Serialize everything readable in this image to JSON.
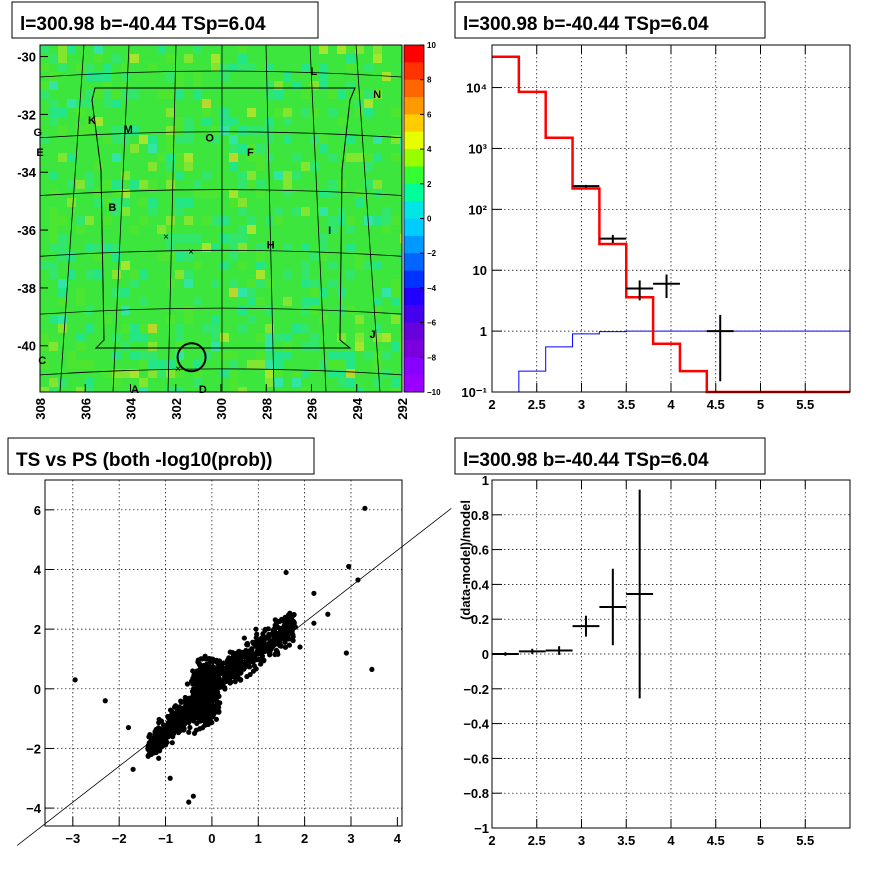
{
  "chart_data": [
    {
      "type": "heatmap",
      "title": "l=300.98 b=-40.44 TSp=6.04",
      "xlabel": "",
      "ylabel": "",
      "x_ticks": [
        "308",
        "306",
        "304",
        "302",
        "300",
        "298",
        "296",
        "294",
        "292"
      ],
      "y_ticks": [
        "-30",
        "-32",
        "-34",
        "-36",
        "-38",
        "-40"
      ],
      "xlim": [
        308,
        292
      ],
      "ylim": [
        -41.6,
        -29.6
      ],
      "colorbar": {
        "range": [
          -10,
          10
        ],
        "ticks": [
          "10",
          "8",
          "6",
          "4",
          "2",
          "0",
          "−2",
          "−4",
          "−6",
          "−8",
          "−10"
        ]
      },
      "labels": [
        {
          "text": "L",
          "x": 295.9,
          "y": -30.5
        },
        {
          "text": "N",
          "x": 293.1,
          "y": -31.3
        },
        {
          "text": "K",
          "x": 305.7,
          "y": -32.2
        },
        {
          "text": "M",
          "x": 304.1,
          "y": -32.5
        },
        {
          "text": "G",
          "x": 308.1,
          "y": -32.6
        },
        {
          "text": "O",
          "x": 300.5,
          "y": -32.8
        },
        {
          "text": "E",
          "x": 308.0,
          "y": -33.3
        },
        {
          "text": "F",
          "x": 298.7,
          "y": -33.3
        },
        {
          "text": "B",
          "x": 304.8,
          "y": -35.2
        },
        {
          "text": "I",
          "x": 295.2,
          "y": -36.0
        },
        {
          "text": "H",
          "x": 297.8,
          "y": -36.5
        },
        {
          "text": "J",
          "x": 293.3,
          "y": -39.6
        },
        {
          "text": "C",
          "x": 307.9,
          "y": -40.5
        },
        {
          "text": "A",
          "x": 303.8,
          "y": -41.5
        },
        {
          "text": "D",
          "x": 300.8,
          "y": -41.5
        }
      ],
      "marker": {
        "label": "source circle",
        "l": 300.98,
        "b": -40.44
      }
    },
    {
      "type": "line",
      "title": "l=300.98 b=-40.44 TSp=6.04",
      "x_ticks": [
        "2",
        "2.5",
        "3",
        "3.5",
        "4",
        "4.5",
        "5",
        "5.5"
      ],
      "y_ticks": [
        "10⁻¹",
        "1",
        "10",
        "10²",
        "10³",
        "10⁴"
      ],
      "xlim": [
        2,
        6
      ],
      "ylim": [
        0.1,
        50000
      ],
      "log_y": true,
      "bin_edges": [
        2.0,
        2.3,
        2.6,
        2.9,
        3.2,
        3.5,
        3.8,
        4.1,
        4.4,
        4.7,
        5.0,
        5.3,
        5.6,
        6.0
      ],
      "series": [
        {
          "color": "#ff0000",
          "values": [
            32000,
            8500,
            1500,
            220,
            27,
            3.6,
            0.62,
            0.22,
            0.1,
            0.1,
            0.1,
            0.1,
            0.1
          ]
        },
        {
          "color": "#0000ff",
          "values": [
            0.1,
            0.22,
            0.55,
            0.9,
            0.98,
            1.0,
            1.0,
            1.0,
            1.0,
            1.0,
            1.0,
            1.0,
            1.0
          ]
        },
        {
          "color": "#000000",
          "points": [
            [
              3.05,
              240,
              0.15,
              12
            ],
            [
              3.35,
              33,
              0.15,
              5
            ],
            [
              3.65,
              5,
              0.15,
              1.8
            ],
            [
              3.95,
              6,
              0.15,
              2.5
            ],
            [
              4.55,
              1,
              0.15,
              0.85
            ]
          ]
        }
      ]
    },
    {
      "type": "scatter",
      "title": "TS vs PS (both -log10(prob))",
      "xlabel": "",
      "ylabel": "",
      "x_ticks": [
        "−3",
        "−2",
        "−1",
        "0",
        "1",
        "2",
        "3",
        "4"
      ],
      "y_ticks": [
        "−4",
        "−2",
        "0",
        "2",
        "4",
        "6"
      ],
      "xlim": [
        -3.6,
        4.1
      ],
      "ylim": [
        -4.6,
        7.0
      ],
      "fit_line": {
        "slope": 1.25,
        "intercept": -0.0
      },
      "points": [
        [
          3.3,
          6.05
        ],
        [
          2.95,
          4.1
        ],
        [
          3.15,
          3.65
        ],
        [
          3.45,
          0.65
        ],
        [
          2.9,
          1.2
        ],
        [
          -2.95,
          0.3
        ],
        [
          -2.3,
          -0.4
        ],
        [
          -1.8,
          -1.3
        ],
        [
          -1.7,
          -2.7
        ],
        [
          -0.4,
          -3.6
        ],
        [
          -0.5,
          -3.8
        ],
        [
          1.6,
          3.9
        ],
        [
          2.2,
          3.2
        ],
        [
          2.5,
          2.5
        ],
        [
          2.2,
          2.2
        ],
        [
          1.9,
          1.4
        ],
        [
          -0.9,
          -3.0
        ]
      ]
    },
    {
      "type": "line",
      "title": "l=300.98 b=-40.44 TSp=6.04",
      "xlabel": "",
      "ylabel": "(data-model)/model",
      "x_ticks": [
        "2",
        "2.5",
        "3",
        "3.5",
        "4",
        "4.5",
        "5",
        "5.5"
      ],
      "y_ticks": [
        "−1",
        "−0.8",
        "−0.6",
        "−0.4",
        "−0.2",
        "0",
        "0.2",
        "0.4",
        "0.6",
        "0.8",
        "1"
      ],
      "xlim": [
        2,
        6
      ],
      "ylim": [
        -1,
        1
      ],
      "points": [
        [
          2.15,
          0.0,
          0.15,
          0.01
        ],
        [
          2.45,
          0.015,
          0.15,
          0.015
        ],
        [
          2.75,
          0.02,
          0.15,
          0.025
        ],
        [
          3.05,
          0.16,
          0.15,
          0.06
        ],
        [
          3.35,
          0.27,
          0.15,
          0.22
        ],
        [
          3.65,
          0.345,
          0.15,
          0.6
        ]
      ]
    }
  ]
}
